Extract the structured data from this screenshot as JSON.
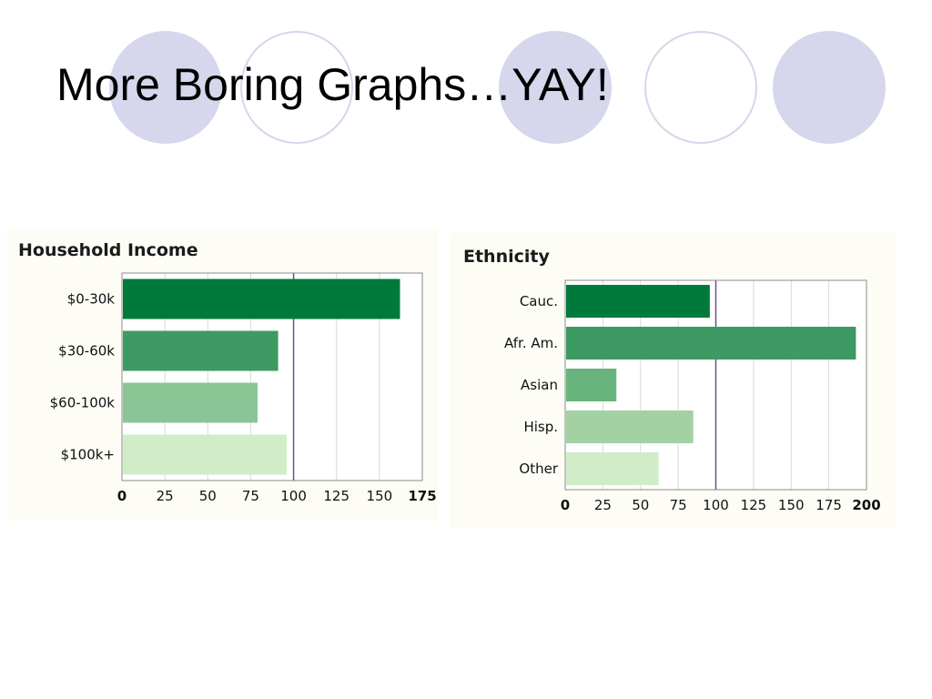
{
  "slide": {
    "title": "More Boring Graphs…YAY!"
  },
  "decor": {
    "circle_fill": "#d6d6ec",
    "circle_outline": "#d6d6ec"
  },
  "chart_data": [
    {
      "type": "bar",
      "orientation": "horizontal",
      "title": "Household Income",
      "categories": [
        "$0-30k",
        "$30-60k",
        "$60-100k",
        "$100k+"
      ],
      "values": [
        162,
        91,
        79,
        96
      ],
      "xlim": [
        0,
        175
      ],
      "ticks": [
        0,
        25,
        50,
        75,
        100,
        125,
        150,
        175
      ],
      "reference_line": 100,
      "grid": true,
      "legend": "none",
      "colors": [
        "#007a3a",
        "#3d9a63",
        "#8ac695",
        "#d1edc8"
      ]
    },
    {
      "type": "bar",
      "orientation": "horizontal",
      "title": "Ethnicity",
      "categories": [
        "Cauc.",
        "Afr. Am.",
        "Asian",
        "Hisp.",
        "Other"
      ],
      "values": [
        96,
        193,
        34,
        85,
        62
      ],
      "xlim": [
        0,
        200
      ],
      "ticks": [
        0,
        25,
        50,
        75,
        100,
        125,
        150,
        175,
        200
      ],
      "reference_line": 100,
      "grid": true,
      "legend": "none",
      "colors": [
        "#007a3a",
        "#3d9a63",
        "#69b47c",
        "#a3d1a3",
        "#d1edc8"
      ]
    }
  ]
}
